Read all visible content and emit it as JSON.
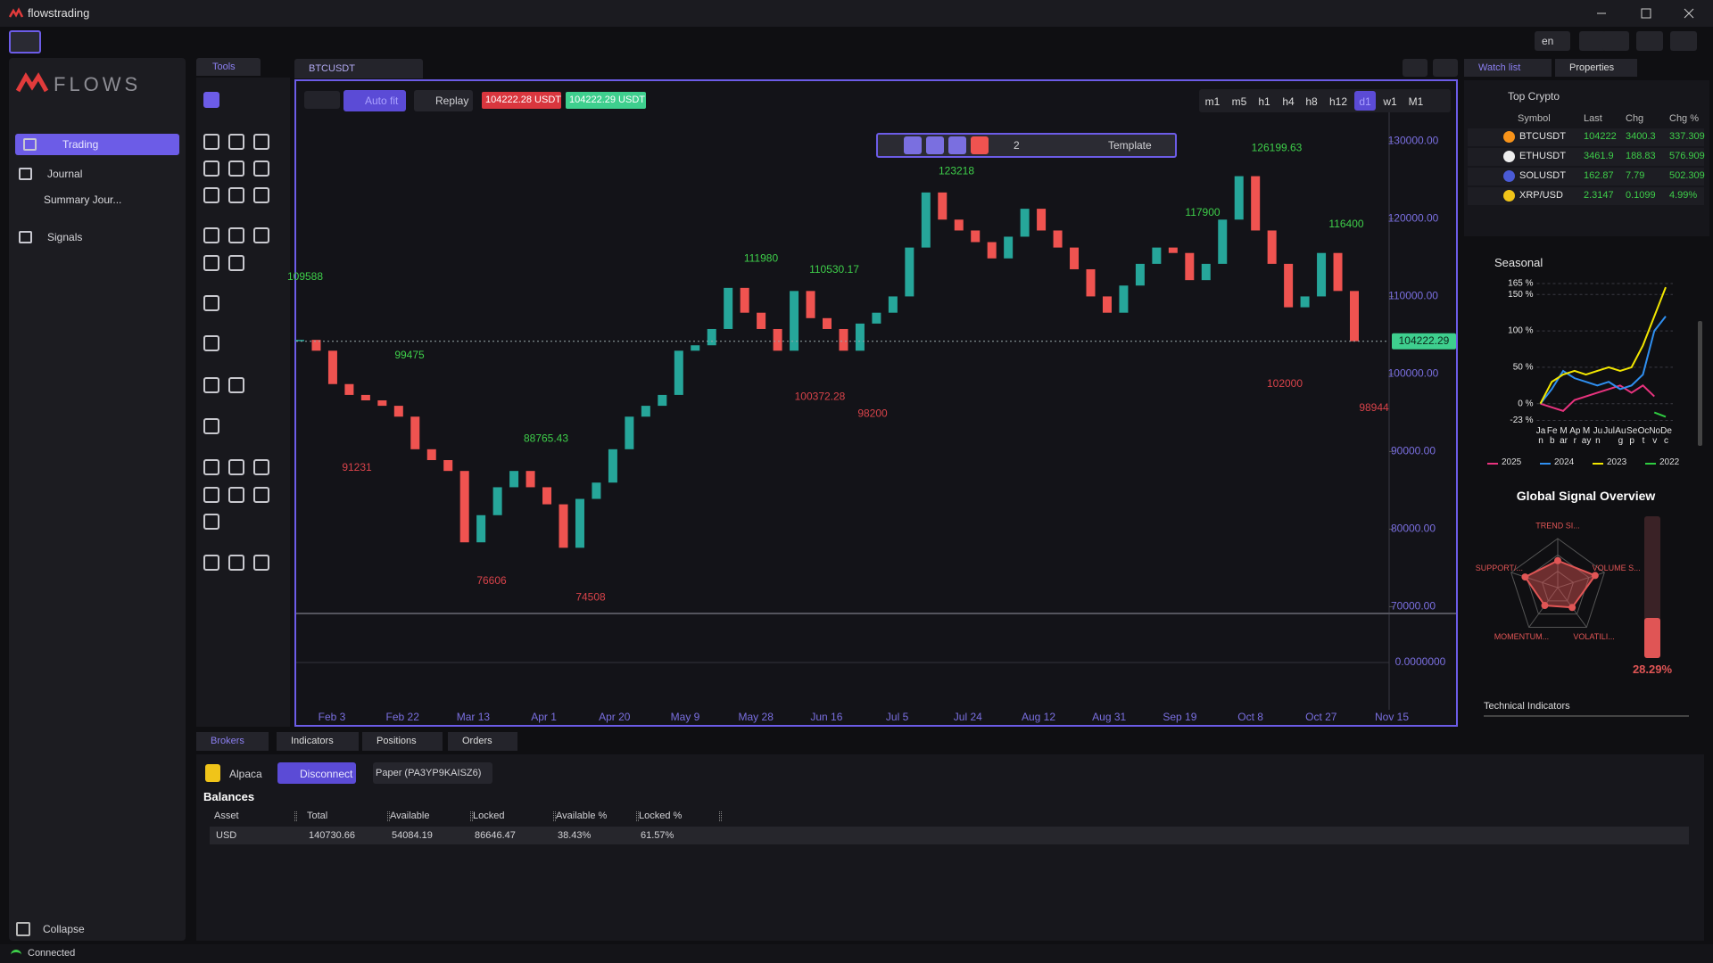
{
  "window": {
    "title": "flowstrading",
    "language": "en"
  },
  "sidebar": {
    "brand": "FLOWS",
    "nav": [
      "Trading",
      "Journal",
      "Summary Jour...",
      "Signals"
    ],
    "active": "Trading",
    "collapse": "Collapse"
  },
  "tools": {
    "title": "Tools"
  },
  "chart_tab": "BTCUSDT",
  "chart_toolbar": {
    "auto_fit": "Auto fit",
    "replay": "Replay",
    "bid": "104222.28 USDT",
    "ask": "104222.29 USDT",
    "timeframes": [
      "m1",
      "m5",
      "h1",
      "h4",
      "h8",
      "h12",
      "d1",
      "w1",
      "M1"
    ],
    "active_timeframe": "d1"
  },
  "drawing_toolbar": {
    "line_width": "2",
    "template": "Template"
  },
  "chart_data": {
    "type": "candlestick",
    "date_labels": [
      "Feb 3",
      "Feb 22",
      "Mar 13",
      "Apr 1",
      "Apr 20",
      "May 9",
      "May 28",
      "Jun 16",
      "Jul 5",
      "Jul 24",
      "Aug 12",
      "Aug 31",
      "Sep 19",
      "Oct 8",
      "Oct 27",
      "Nov 15"
    ],
    "values": [
      104400,
      103000,
      98700,
      97300,
      96600,
      95900,
      94500,
      90300,
      88900,
      87500,
      78300,
      81800,
      85400,
      87500,
      85400,
      83200,
      77600,
      83900,
      86000,
      90300,
      94500,
      95900,
      97300,
      103000,
      103700,
      105800,
      111100,
      107900,
      105800,
      103000,
      110700,
      107200,
      105800,
      103000,
      106500,
      107900,
      110000,
      116300,
      123400,
      119900,
      118500,
      117000,
      114900,
      117700,
      121300,
      118500,
      116300,
      113500,
      110000,
      107900,
      111400,
      114200,
      116300,
      115600,
      112100,
      114200,
      119900,
      125500,
      118500,
      114200,
      108600,
      110000,
      115600,
      110700,
      104222
    ],
    "up_color": "#26a69a",
    "down_color": "#ef5350",
    "ylim": [
      68900,
      133900
    ],
    "yticks": [
      {
        "value": 70000,
        "label": "70000.00"
      },
      {
        "value": 80000,
        "label": "80000.00"
      },
      {
        "value": 90000,
        "label": "90000.00"
      },
      {
        "value": 100000,
        "label": "100000.00"
      },
      {
        "value": 110000,
        "label": "110000.00"
      },
      {
        "value": 120000,
        "label": "120000.00"
      },
      {
        "value": 130000,
        "label": "130000.00"
      }
    ],
    "last_price": 104222.29,
    "last_price_color": "#3ecf8e",
    "high_labels": [
      109588,
      99475,
      88765.43,
      111980,
      110530.17,
      123218,
      117900,
      126199.63,
      116400
    ],
    "low_labels": [
      91231,
      76606,
      74508,
      100372.28,
      98200,
      102000,
      98944
    ],
    "high_label_color": "#3ecf4a",
    "low_label_color": "#d9434a",
    "macd_ticks": [
      {
        "value": 0,
        "label": "0.0000000"
      }
    ]
  },
  "watchlist": {
    "tabs": [
      "Watch list",
      "Properties"
    ],
    "list": "Top Crypto",
    "columns": [
      "Symbol",
      "Last",
      "Chg",
      "Chg %"
    ],
    "rows": [
      [
        "BTCUSDT",
        "104222",
        "3400.3",
        "337.309"
      ],
      [
        "ETHUSDT",
        "3461.9",
        "188.83",
        "576.909"
      ],
      [
        "SOLUSDT",
        "162.87",
        "7.79",
        "502.309"
      ],
      [
        "XRP/USD",
        "2.3147",
        "0.1099",
        "4.99%"
      ]
    ]
  },
  "seasonal": {
    "type": "line",
    "title": "Seasonal",
    "categories": [
      "Jan",
      "Feb",
      "Mar",
      "Apr",
      "May",
      "Jun",
      "Jul",
      "Aug",
      "Sep",
      "Oct",
      "Nov",
      "Dec"
    ],
    "series": [
      {
        "name": "2025",
        "color": "#e8337e",
        "values": [
          0,
          -5,
          -10,
          5,
          10,
          15,
          20,
          25,
          15,
          25,
          10,
          null
        ]
      },
      {
        "name": "2024",
        "color": "#2f8ff0",
        "values": [
          0,
          20,
          45,
          35,
          30,
          25,
          30,
          20,
          25,
          40,
          100,
          120
        ]
      },
      {
        "name": "2023",
        "color": "#f2e600",
        "values": [
          0,
          30,
          40,
          45,
          40,
          45,
          50,
          45,
          50,
          80,
          120,
          160
        ]
      },
      {
        "name": "2022",
        "color": "#2ecc40",
        "values": [
          null,
          null,
          null,
          null,
          null,
          null,
          null,
          null,
          null,
          null,
          -12,
          -18
        ]
      }
    ],
    "ylim": [
      -23,
      165
    ],
    "yticks": [
      {
        "value": -23,
        "label": "-23 %"
      },
      {
        "value": 0,
        "label": "0 %"
      },
      {
        "value": 50,
        "label": "50 %"
      },
      {
        "value": 100,
        "label": "100 %"
      },
      {
        "value": 150,
        "label": "150 %"
      },
      {
        "value": 165,
        "label": "165 %"
      }
    ]
  },
  "signals": {
    "title": "Global Signal Overview",
    "color": "#e05555",
    "rlim": [
      0,
      1
    ],
    "axes": [
      {
        "label": "TREND SI...",
        "value": 0.55
      },
      {
        "label": "VOLUME S...",
        "value": 0.8
      },
      {
        "label": "VOLATILI...",
        "value": 0.5
      },
      {
        "label": "MOMENTUM...",
        "value": 0.45
      },
      {
        "label": "SUPPORT/...",
        "value": 0.7
      }
    ],
    "gauge": {
      "value": 28.29,
      "label": "28.29%",
      "lim": [
        0,
        100
      ]
    }
  },
  "technical_indicators": "Technical Indicators",
  "bottom": {
    "tabs": [
      "Brokers",
      "Indicators",
      "Positions",
      "Orders"
    ],
    "broker": "Alpaca",
    "disconnect": "Disconnect",
    "account": "Paper (PA3YP9KAISZ6)",
    "balances": "Balances",
    "table": {
      "columns": [
        "Asset",
        "Total",
        "Available",
        "Locked",
        "Available %",
        "Locked %"
      ],
      "rows": [
        [
          "USD",
          "140730.66",
          "54084.19",
          "86646.47",
          "38.43%",
          "61.57%"
        ]
      ]
    }
  },
  "status": "Connected"
}
